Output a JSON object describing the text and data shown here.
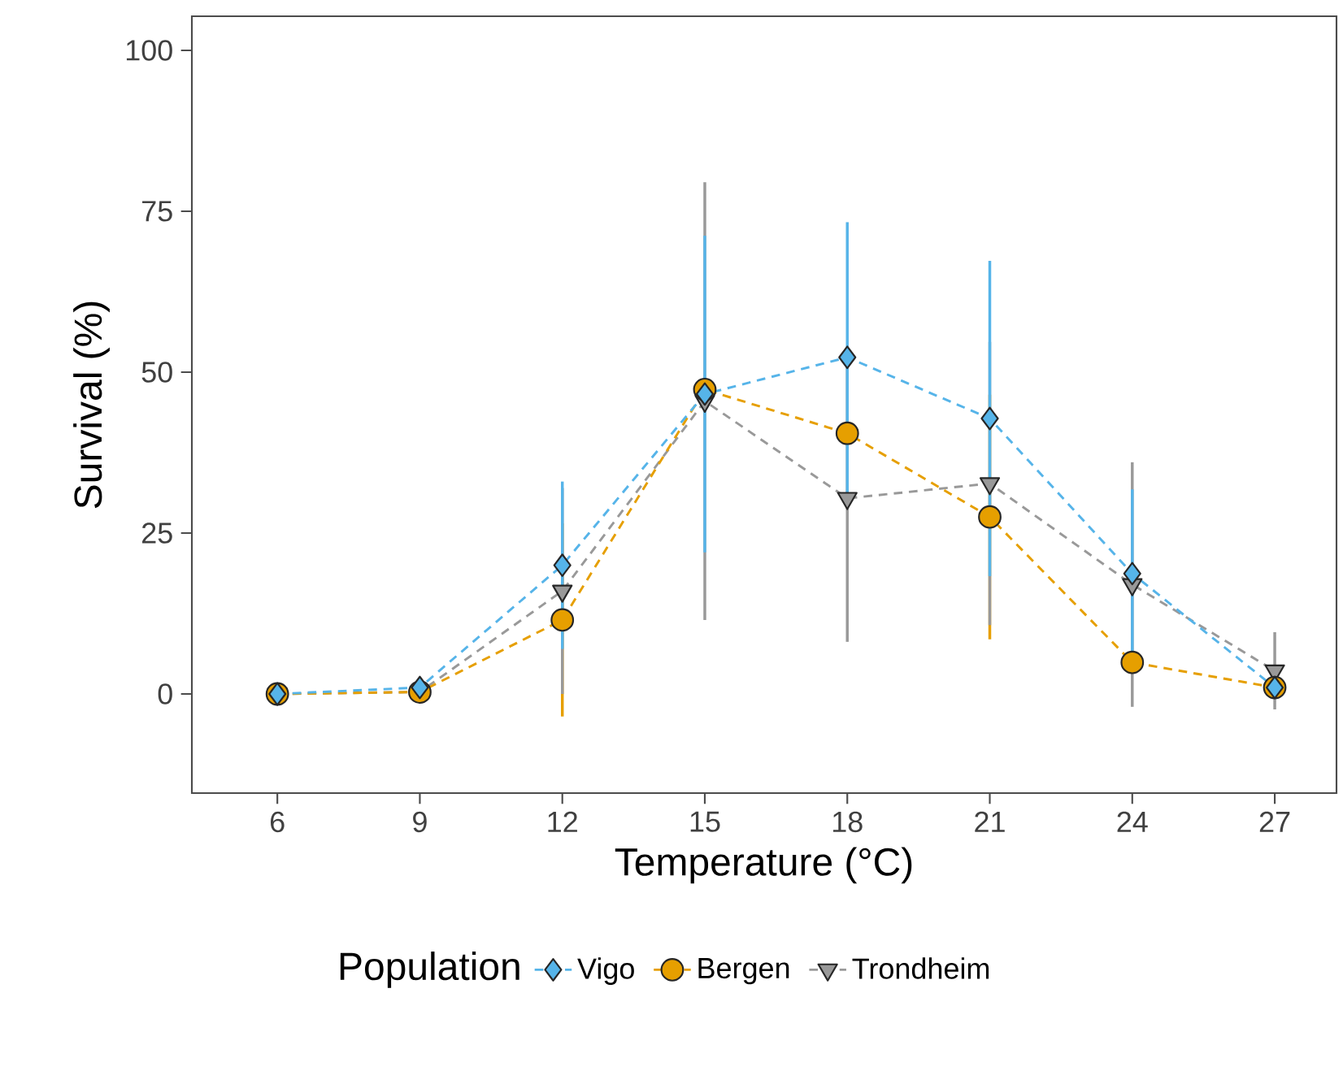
{
  "chart_data": {
    "type": "line",
    "xlabel": "Temperature (°C)",
    "ylabel": "Survival (%)",
    "legend_title": "Population",
    "legend": "bottom",
    "line_style": "dashed",
    "grid": false,
    "x": [
      6,
      9,
      12,
      15,
      18,
      21,
      24,
      27
    ],
    "xlim": [
      4.2,
      28.3
    ],
    "xticks": [
      6,
      9,
      12,
      15,
      18,
      21,
      24,
      27
    ],
    "ylim": [
      -15.4,
      105.3
    ],
    "yticks": [
      0,
      25,
      50,
      75,
      100
    ],
    "series": [
      {
        "name": "Vigo",
        "color": "#56b4e9",
        "marker": "diamond",
        "values": [
          0,
          1,
          20,
          46.6,
          52.3,
          42.8,
          18.7,
          1
        ],
        "errors": [
          null,
          null,
          13,
          24.6,
          21,
          24.5,
          13.1,
          null
        ]
      },
      {
        "name": "Bergen",
        "color": "#e69f00",
        "marker": "circle",
        "values": [
          0,
          0.3,
          11.5,
          47.3,
          40.5,
          27.5,
          4.9,
          1
        ],
        "errors": [
          null,
          null,
          15,
          null,
          null,
          19,
          null,
          null
        ]
      },
      {
        "name": "Trondheim",
        "color": "#999999",
        "marker": "triangle down",
        "values": [
          0,
          0.3,
          16,
          45.5,
          30.4,
          32.7,
          17,
          3.6
        ],
        "errors": [
          null,
          null,
          16,
          34,
          22.3,
          22,
          19,
          6
        ]
      }
    ]
  }
}
